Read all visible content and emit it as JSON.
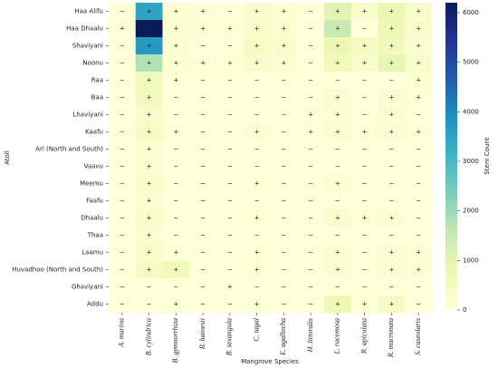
{
  "chart_data": {
    "type": "heatmap",
    "x_label": "Mangrove Species",
    "y_label": "Atoll",
    "colorbar_label": "Stem Count",
    "x": [
      "A. marina",
      "B. cylindrica",
      "B. gymnorrhiza",
      "B. hainesii",
      "B. sexangula",
      "C. tagal",
      "E. agallocha",
      "H. littoralis",
      "L. racemosa",
      "R. apiculata",
      "R. mucronata",
      "S. caseolaris"
    ],
    "y": [
      "Haa Alifu",
      "Haa Dhaalu",
      "Shaviyani",
      "Noonu",
      "Raa",
      "Baa",
      "Lhaviyani",
      "Kaafu",
      "Ari (North and South)",
      "Vaavu",
      "Meemu",
      "Faafu",
      "Dhaalu",
      "Thaa",
      "Laamu",
      "Huvadhoo (North and South)",
      "Ghaviyani",
      "Addu"
    ],
    "z": [
      [
        0,
        3500,
        150,
        100,
        0,
        250,
        200,
        0,
        1000,
        300,
        800,
        300
      ],
      [
        50,
        6200,
        200,
        100,
        100,
        300,
        200,
        0,
        1500,
        0,
        700,
        300
      ],
      [
        0,
        3700,
        150,
        0,
        0,
        400,
        250,
        0,
        800,
        400,
        600,
        200
      ],
      [
        0,
        1800,
        150,
        100,
        100,
        300,
        200,
        0,
        600,
        300,
        900,
        300
      ],
      [
        0,
        600,
        100,
        0,
        0,
        0,
        0,
        0,
        0,
        0,
        0,
        100
      ],
      [
        0,
        500,
        0,
        0,
        0,
        0,
        0,
        0,
        200,
        0,
        200,
        100
      ],
      [
        0,
        300,
        0,
        0,
        0,
        0,
        0,
        50,
        150,
        0,
        150,
        0
      ],
      [
        0,
        400,
        100,
        0,
        0,
        150,
        0,
        50,
        200,
        100,
        200,
        100
      ],
      [
        0,
        200,
        0,
        0,
        0,
        0,
        0,
        0,
        0,
        0,
        0,
        0
      ],
      [
        0,
        200,
        0,
        0,
        0,
        0,
        0,
        0,
        0,
        0,
        0,
        0
      ],
      [
        0,
        250,
        0,
        0,
        0,
        100,
        0,
        0,
        150,
        0,
        0,
        0
      ],
      [
        0,
        200,
        0,
        0,
        0,
        0,
        0,
        0,
        0,
        0,
        0,
        0
      ],
      [
        0,
        300,
        0,
        0,
        0,
        100,
        0,
        0,
        300,
        100,
        150,
        0
      ],
      [
        0,
        200,
        0,
        0,
        0,
        0,
        0,
        0,
        0,
        0,
        0,
        0
      ],
      [
        0,
        300,
        100,
        0,
        0,
        100,
        0,
        0,
        150,
        0,
        150,
        100
      ],
      [
        0,
        400,
        600,
        0,
        0,
        100,
        0,
        0,
        150,
        0,
        150,
        100
      ],
      [
        0,
        0,
        0,
        0,
        50,
        0,
        0,
        0,
        0,
        0,
        0,
        0
      ],
      [
        0,
        0,
        100,
        0,
        0,
        100,
        0,
        0,
        700,
        100,
        400,
        0
      ]
    ],
    "annotations": [
      [
        "−",
        "+",
        "+",
        "+",
        "−",
        "+",
        "+",
        "−",
        "+",
        "+",
        "+",
        "+"
      ],
      [
        "+",
        "+",
        "+",
        "+",
        "+",
        "+",
        "+",
        "−",
        "+",
        "−",
        "+",
        "+"
      ],
      [
        "−",
        "+",
        "+",
        "−",
        "−",
        "+",
        "+",
        "−",
        "+",
        "+",
        "+",
        "+"
      ],
      [
        "−",
        "+",
        "+",
        "+",
        "+",
        "+",
        "+",
        "−",
        "+",
        "+",
        "+",
        "+"
      ],
      [
        "−",
        "+",
        "+",
        "−",
        "−",
        "−",
        "−",
        "−",
        "−",
        "−",
        "−",
        "+"
      ],
      [
        "−",
        "+",
        "−",
        "−",
        "−",
        "−",
        "−",
        "−",
        "+",
        "−",
        "+",
        "+"
      ],
      [
        "−",
        "+",
        "−",
        "−",
        "−",
        "−",
        "−",
        "+",
        "+",
        "−",
        "+",
        "−"
      ],
      [
        "−",
        "+",
        "+",
        "−",
        "−",
        "+",
        "−",
        "+",
        "+",
        "+",
        "+",
        "+"
      ],
      [
        "−",
        "+",
        "−",
        "−",
        "−",
        "−",
        "−",
        "−",
        "−",
        "−",
        "−",
        "−"
      ],
      [
        "−",
        "+",
        "−",
        "−",
        "−",
        "−",
        "−",
        "−",
        "−",
        "−",
        "−",
        "−"
      ],
      [
        "−",
        "+",
        "−",
        "−",
        "−",
        "+",
        "−",
        "−",
        "+",
        "−",
        "−",
        "−"
      ],
      [
        "−",
        "+",
        "−",
        "−",
        "−",
        "−",
        "−",
        "−",
        "−",
        "−",
        "−",
        "−"
      ],
      [
        "−",
        "+",
        "−",
        "−",
        "−",
        "+",
        "−",
        "−",
        "+",
        "+",
        "+",
        "−"
      ],
      [
        "−",
        "+",
        "−",
        "−",
        "−",
        "−",
        "−",
        "−",
        "−",
        "−",
        "−",
        "−"
      ],
      [
        "−",
        "+",
        "+",
        "−",
        "−",
        "+",
        "−",
        "−",
        "+",
        "−",
        "+",
        "+"
      ],
      [
        "−",
        "+",
        "+",
        "−",
        "−",
        "+",
        "−",
        "−",
        "+",
        "−",
        "+",
        "+"
      ],
      [
        "−",
        "−",
        "−",
        "−",
        "+",
        "−",
        "−",
        "−",
        "−",
        "−",
        "−",
        "−"
      ],
      [
        "−",
        "−",
        "+",
        "−",
        "−",
        "+",
        "−",
        "−",
        "+",
        "+",
        "+",
        "−"
      ]
    ],
    "zlim": [
      0,
      6200
    ],
    "zticks": [
      0,
      1000,
      2000,
      3000,
      4000,
      5000,
      6000
    ],
    "colorscale": [
      "#ffffd9",
      "#edf8b1",
      "#c7e9b4",
      "#7fcdbb",
      "#41b6c4",
      "#1d91c0",
      "#225ea8",
      "#253494",
      "#081d58"
    ]
  }
}
